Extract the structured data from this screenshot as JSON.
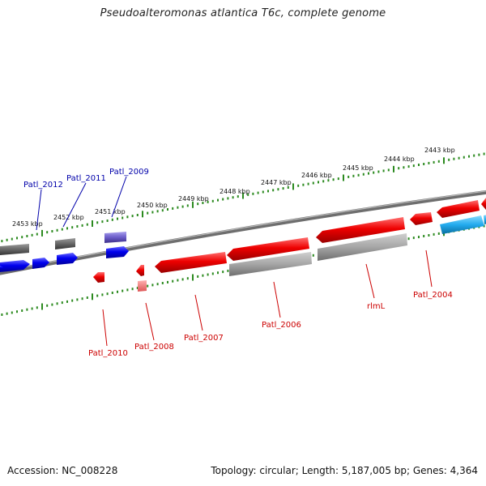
{
  "title": "Pseudoalteromonas atlantica T6c, complete genome",
  "footer": {
    "accession": "Accession: NC_008228",
    "summary": "Topology: circular; Length: 5,187,005 bp; Genes: 4,364"
  },
  "ruler_labels": [
    "2443 kbp",
    "2444 kbp",
    "2445 kbp",
    "2446 kbp",
    "2447 kbp",
    "2448 kbp",
    "2449 kbp",
    "2450 kbp",
    "2451 kbp",
    "2452 kbp",
    "2453 kbp"
  ],
  "genes_forward": [
    "Patl_2012",
    "Patl_2011",
    "Patl_2009"
  ],
  "genes_reverse": [
    "Patl_2010",
    "Patl_2008",
    "Patl_2007",
    "Patl_2006",
    "rlmL",
    "Patl_2004"
  ],
  "colors": {
    "forward_cds": "#0000ff",
    "reverse_cds": "#ff0000",
    "gray_feature": "#9a9a9a",
    "backbone": "#808080",
    "ticks": "#2b8a1f",
    "forward_label": "#0000aa",
    "reverse_label": "#cc0000",
    "cyan_feature": "#33bbee",
    "purple_feature": "#7766cc"
  }
}
